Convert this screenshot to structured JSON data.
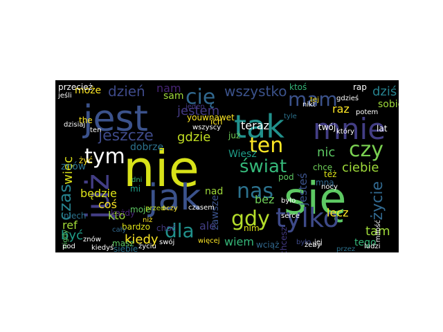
{
  "cloud": {
    "background": "#000000",
    "words": [
      {
        "text": "nie",
        "color": "#d8e219"
      },
      {
        "text": "się",
        "color": "#5dc863"
      },
      {
        "text": "jest",
        "color": "#3b528b"
      },
      {
        "text": "tak",
        "color": "#21918c"
      },
      {
        "text": "mnie",
        "color": "#433e85"
      },
      {
        "text": "jak",
        "color": "#3b528b"
      },
      {
        "text": "już",
        "color": "#433e85"
      },
      {
        "text": "tylko",
        "color": "#3e4a89"
      },
      {
        "text": "czy",
        "color": "#7ad151"
      },
      {
        "text": "gdy",
        "color": "#b5de2b"
      },
      {
        "text": "ten",
        "color": "#fde725"
      },
      {
        "text": "nas",
        "color": "#2c728e"
      },
      {
        "text": "dla",
        "color": "#21918c"
      },
      {
        "text": "mam",
        "color": "#3b528b"
      },
      {
        "text": "świat",
        "color": "#35b779"
      },
      {
        "text": "cię",
        "color": "#31688e"
      },
      {
        "text": "tym",
        "color": "#ffffff"
      },
      {
        "text": "czas",
        "color": "#26828e"
      },
      {
        "text": "życie",
        "color": "#31688e"
      },
      {
        "text": "jeszcze",
        "color": "#3e4a89"
      },
      {
        "text": "wszystko",
        "color": "#3b528b"
      },
      {
        "text": "dzień",
        "color": "#3e4a89"
      },
      {
        "text": "może",
        "color": "#fde725"
      },
      {
        "text": "jestem",
        "color": "#443a83"
      },
      {
        "text": "gdzie",
        "color": "#c2df23"
      },
      {
        "text": "nic",
        "color": "#5dc863"
      },
      {
        "text": "ciebie",
        "color": "#9fda3a"
      },
      {
        "text": "kiedy",
        "color": "#fde725"
      },
      {
        "text": "wiem",
        "color": "#35b779"
      },
      {
        "text": "tam",
        "color": "#9fda3a"
      },
      {
        "text": "będzie",
        "color": "#dde318"
      },
      {
        "text": "bez",
        "color": "#6ece58"
      },
      {
        "text": "lecz",
        "color": "#fde725"
      },
      {
        "text": "raz",
        "color": "#fde725"
      },
      {
        "text": "dziś",
        "color": "#26828e"
      },
      {
        "text": "teraz",
        "color": "#ffffff"
      },
      {
        "text": "więc",
        "color": "#dde318"
      },
      {
        "text": "znów",
        "color": "#2c728e"
      },
      {
        "text": "nam",
        "color": "#482576"
      },
      {
        "text": "sam",
        "color": "#9fda3a"
      },
      {
        "text": "sobie",
        "color": "#9fda3a"
      },
      {
        "text": "kto",
        "color": "#9fda3a"
      },
      {
        "text": "być",
        "color": "#1f9e89"
      },
      {
        "text": "ref",
        "color": "#a2da37"
      },
      {
        "text": "coś",
        "color": "#fde725"
      },
      {
        "text": "tego",
        "color": "#35b779"
      },
      {
        "text": "ale",
        "color": "#433e85"
      },
      {
        "text": "dobrze",
        "color": "#2c728e"
      },
      {
        "text": "jesteś",
        "color": "#3b528b"
      },
      {
        "text": "chcę",
        "color": "#6ece58"
      },
      {
        "text": "mną",
        "color": "#31688e"
      },
      {
        "text": "nad",
        "color": "#9fda3a"
      },
      {
        "text": "zawsze",
        "color": "#3b528b"
      },
      {
        "text": "ich",
        "color": "#fde725"
      },
      {
        "text": "Wiesz",
        "color": "#1f9e89"
      },
      {
        "text": "niech",
        "color": "#2c728e"
      },
      {
        "text": "każdy",
        "color": "#482878"
      },
      {
        "text": "bardzo",
        "color": "#dde318"
      },
      {
        "text": "choć",
        "color": "#443a83"
      },
      {
        "text": "masz",
        "color": "#5dc863"
      },
      {
        "text": "wciąż",
        "color": "#31688e"
      },
      {
        "text": "tej",
        "color": "#fde725"
      },
      {
        "text": "już",
        "color": "#6ece58"
      },
      {
        "text": "nim",
        "color": "#dde318"
      },
      {
        "text": "pod",
        "color": "#5dc863"
      },
      {
        "text": "też",
        "color": "#dde318"
      },
      {
        "text": "the",
        "color": "#fde725"
      },
      {
        "text": "żyć",
        "color": "#fde725"
      },
      {
        "text": "dni",
        "color": "#35b779"
      },
      {
        "text": "mi",
        "color": "#1f9e89"
      },
      {
        "text": "moje",
        "color": "#5dc863"
      },
      {
        "text": "przed",
        "color": "#c2df23"
      },
      {
        "text": "jeden",
        "color": "#443a83"
      },
      {
        "text": "youwnawet",
        "color": "#fde725"
      },
      {
        "text": "cały",
        "color": "#31688e"
      },
      {
        "text": "siebie",
        "color": "#2c728e"
      },
      {
        "text": "było",
        "color": "#3e4a89"
      },
      {
        "text": "chcesz",
        "color": "#443a83"
      },
      {
        "text": "ktoś",
        "color": "#35b779"
      },
      {
        "text": "tyle",
        "color": "#2c728e"
      },
      {
        "text": "oczy",
        "color": "#fde725"
      },
      {
        "text": "przez",
        "color": "#2c728e"
      },
      {
        "text": "miłość",
        "color": "#ffffff"
      },
      {
        "text": "lat",
        "color": "#ffffff"
      },
      {
        "text": "twój",
        "color": "#ffffff"
      },
      {
        "text": "rap",
        "color": "#ffffff"
      },
      {
        "text": "niż",
        "color": "#fde725"
      },
      {
        "text": "więcej",
        "color": "#fde725"
      },
      {
        "text": "nigdy",
        "color": "#5dc863"
      },
      {
        "text": "żeby",
        "color": "#ffffff"
      },
      {
        "text": "przecież",
        "color": "#ffffff"
      },
      {
        "text": "jeśli",
        "color": "#ffffff"
      },
      {
        "text": "który",
        "color": "#ffffff"
      },
      {
        "text": "nocy",
        "color": "#ffffff"
      },
      {
        "text": "jej",
        "color": "#ffffff"
      },
      {
        "text": "było",
        "color": "#ffffff"
      },
      {
        "text": "pod",
        "color": "#ffffff"
      },
      {
        "text": "dzisiaj",
        "color": "#ffffff"
      },
      {
        "text": "znów",
        "color": "#ffffff"
      },
      {
        "text": "kiedyś",
        "color": "#ffffff"
      },
      {
        "text": "ten",
        "color": "#ffffff"
      },
      {
        "text": "życiu",
        "color": "#ffffff"
      },
      {
        "text": "ludzi",
        "color": "#ffffff"
      },
      {
        "text": "potem",
        "color": "#ffffff"
      },
      {
        "text": "serce",
        "color": "#ffffff"
      },
      {
        "text": "gdzieś",
        "color": "#ffffff"
      },
      {
        "text": "czasem",
        "color": "#ffffff"
      },
      {
        "text": "wszyscy",
        "color": "#ffffff"
      },
      {
        "text": "swój",
        "color": "#ffffff"
      },
      {
        "text": "nikt",
        "color": "#ffffff"
      }
    ]
  }
}
